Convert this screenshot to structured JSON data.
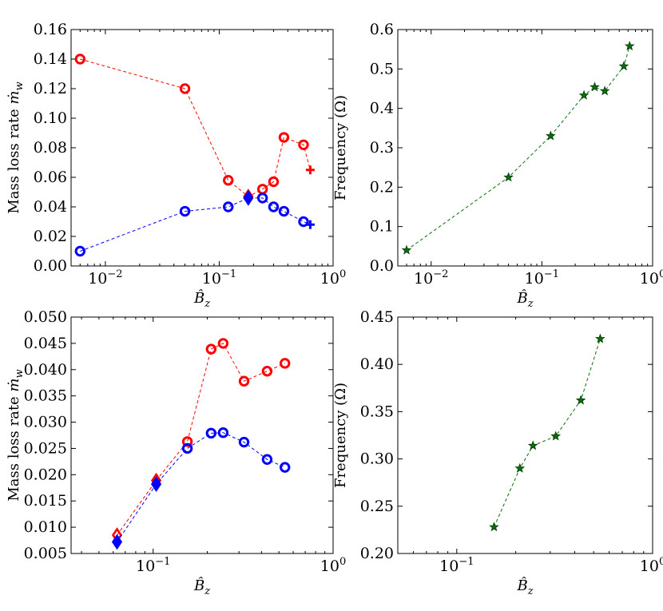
{
  "chart_data": [
    {
      "type": "line",
      "panel": "top-left",
      "xscale": "log",
      "xlim": [
        0.005,
        1.0
      ],
      "ylim": [
        0.0,
        0.16
      ],
      "yticks": [
        "0.00",
        "0.02",
        "0.04",
        "0.06",
        "0.08",
        "0.10",
        "0.12",
        "0.14",
        "0.16"
      ],
      "xticks": [
        {
          "value": 0.01,
          "base": "10",
          "exp": "−2"
        },
        {
          "value": 0.1,
          "base": "10",
          "exp": "−1"
        },
        {
          "value": 1.0,
          "base": "10",
          "exp": "0"
        }
      ],
      "xlabel": {
        "main": "B̂",
        "sub": "z"
      },
      "ylabel": {
        "main": "Mass loss rate ",
        "dot": "ṁ",
        "sub": "w"
      },
      "series": [
        {
          "name": "red",
          "color": "#ff0000",
          "marker": "circle",
          "x": [
            0.006,
            0.05,
            0.12,
            0.24,
            0.3,
            0.37,
            0.55
          ],
          "y": [
            0.14,
            0.12,
            0.058,
            0.052,
            0.057,
            0.087,
            0.082
          ],
          "extra": [
            {
              "marker": "diamond",
              "x": 0.18,
              "y": 0.047
            },
            {
              "marker": "plus",
              "x": 0.63,
              "y": 0.065
            }
          ]
        },
        {
          "name": "blue",
          "color": "#0000ff",
          "marker": "circle",
          "x": [
            0.006,
            0.05,
            0.12,
            0.24,
            0.3,
            0.37,
            0.55
          ],
          "y": [
            0.01,
            0.037,
            0.04,
            0.046,
            0.04,
            0.037,
            0.03
          ],
          "extra": [
            {
              "marker": "diamond",
              "x": 0.18,
              "y": 0.046
            },
            {
              "marker": "plus",
              "x": 0.63,
              "y": 0.028
            }
          ]
        }
      ]
    },
    {
      "type": "line",
      "panel": "top-right",
      "xscale": "log",
      "xlim": [
        0.005,
        1.0
      ],
      "ylim": [
        0.0,
        0.6
      ],
      "yticks": [
        "0.0",
        "0.1",
        "0.2",
        "0.3",
        "0.4",
        "0.5",
        "0.6"
      ],
      "xticks": [
        {
          "value": 0.01,
          "base": "10",
          "exp": "−2"
        },
        {
          "value": 0.1,
          "base": "10",
          "exp": "−1"
        },
        {
          "value": 1.0,
          "base": "10",
          "exp": "0"
        }
      ],
      "xlabel": {
        "main": "B̂",
        "sub": "z"
      },
      "ylabel": {
        "main": "Frequency (Ω)"
      },
      "series": [
        {
          "name": "frequency",
          "color": "#0a6e0a",
          "marker": "star",
          "x": [
            0.006,
            0.05,
            0.12,
            0.24,
            0.3,
            0.37,
            0.55,
            0.62
          ],
          "y": [
            0.04,
            0.225,
            0.33,
            0.433,
            0.454,
            0.444,
            0.507,
            0.558
          ]
        }
      ]
    },
    {
      "type": "line",
      "panel": "bottom-left",
      "xscale": "log",
      "xlim": [
        0.035,
        1.0
      ],
      "ylim": [
        0.005,
        0.05
      ],
      "yticks": [
        "0.005",
        "0.010",
        "0.015",
        "0.020",
        "0.025",
        "0.030",
        "0.035",
        "0.040",
        "0.045",
        "0.050"
      ],
      "xticks": [
        {
          "value": 0.1,
          "base": "10",
          "exp": "−1"
        },
        {
          "value": 1.0,
          "base": "10",
          "exp": "0"
        }
      ],
      "xlabel": {
        "main": "B̂",
        "sub": "z"
      },
      "ylabel": {
        "main": "Mass loss rate ",
        "dot": "ṁ",
        "sub": "w"
      },
      "series": [
        {
          "name": "red",
          "color": "#ff0000",
          "marker": "circle",
          "x": [
            0.155,
            0.21,
            0.245,
            0.32,
            0.43,
            0.54
          ],
          "y": [
            0.0263,
            0.0439,
            0.045,
            0.0378,
            0.0397,
            0.0412
          ],
          "extra": [
            {
              "marker": "diamond",
              "x": 0.063,
              "y": 0.0085
            },
            {
              "marker": "diamond",
              "x": 0.104,
              "y": 0.0189
            }
          ],
          "line_x": [
            0.063,
            0.104,
            0.155,
            0.21,
            0.245,
            0.32,
            0.43,
            0.54
          ],
          "line_y": [
            0.0085,
            0.0189,
            0.0263,
            0.0439,
            0.045,
            0.0378,
            0.0397,
            0.0412
          ]
        },
        {
          "name": "blue",
          "color": "#0000ff",
          "marker": "circle",
          "x": [
            0.155,
            0.21,
            0.245,
            0.32,
            0.43,
            0.54
          ],
          "y": [
            0.025,
            0.0279,
            0.028,
            0.0262,
            0.0229,
            0.0214
          ],
          "extra": [
            {
              "marker": "diamond",
              "x": 0.063,
              "y": 0.0072
            },
            {
              "marker": "diamond",
              "x": 0.104,
              "y": 0.0182
            }
          ],
          "line_x": [
            0.063,
            0.104,
            0.155,
            0.21,
            0.245,
            0.32,
            0.43,
            0.54
          ],
          "line_y": [
            0.0072,
            0.0182,
            0.025,
            0.0279,
            0.028,
            0.0262,
            0.0229,
            0.0214
          ]
        }
      ]
    },
    {
      "type": "line",
      "panel": "bottom-right",
      "xscale": "log",
      "xlim": [
        0.05,
        1.0
      ],
      "ylim": [
        0.2,
        0.45
      ],
      "yticks": [
        "0.20",
        "0.25",
        "0.30",
        "0.35",
        "0.40",
        "0.45"
      ],
      "xticks": [
        {
          "value": 0.1,
          "base": "10",
          "exp": "−1"
        },
        {
          "value": 1.0,
          "base": "10",
          "exp": "0"
        }
      ],
      "xlabel": {
        "main": "B̂",
        "sub": "z"
      },
      "ylabel": {
        "main": "Frequency (Ω)"
      },
      "series": [
        {
          "name": "frequency",
          "color": "#0a6e0a",
          "marker": "star",
          "x": [
            0.155,
            0.21,
            0.245,
            0.32,
            0.43,
            0.54
          ],
          "y": [
            0.228,
            0.29,
            0.314,
            0.324,
            0.362,
            0.427
          ]
        }
      ]
    }
  ]
}
